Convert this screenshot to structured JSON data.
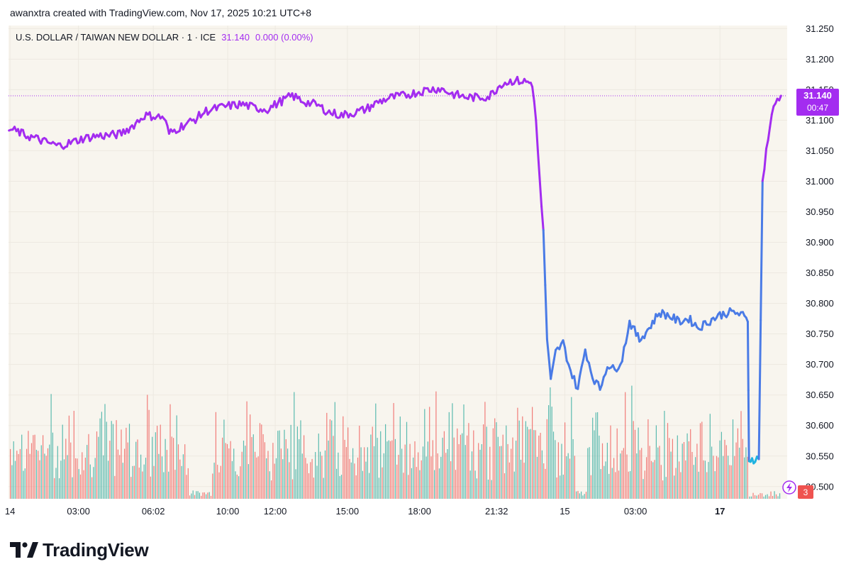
{
  "credit": "awanxtra created with TradingView.com, Nov 17, 2025 10:21 UTC+8",
  "brand": "TradingView",
  "colors": {
    "plot_bg": "#f8f5ee",
    "price_purple": "#a32cf0",
    "price_blue": "#4a7be6",
    "price_cyan": "#1fb3e0",
    "vol_up": "#26a69a",
    "vol_down": "#ef5350",
    "grid": "#ede9e1",
    "axis_text": "#131722"
  },
  "chart_data": {
    "type": "line",
    "title": "U.S. DOLLAR / TAIWAN NEW DOLLAR · 1 · ICE",
    "legend_value": "31.140",
    "legend_change": "0.000 (0.00%)",
    "last_price_label": "31.140",
    "countdown_label": "00:47",
    "event_badge": "3",
    "ylim": [
      30.48,
      31.255
    ],
    "y_ticks": [
      "31.250",
      "31.200",
      "31.150",
      "31.100",
      "31.050",
      "31.000",
      "30.950",
      "30.900",
      "30.850",
      "30.800",
      "30.750",
      "30.700",
      "30.650",
      "30.600",
      "30.550",
      "30.500"
    ],
    "x_ticks": [
      {
        "label": "14",
        "bold": false,
        "t": 0.04
      },
      {
        "label": "03:00",
        "bold": false,
        "t": 2.82
      },
      {
        "label": "06:02",
        "bold": false,
        "t": 5.86
      },
      {
        "label": "10:00",
        "bold": false,
        "t": 8.88
      },
      {
        "label": "12:00",
        "bold": false,
        "t": 10.81
      },
      {
        "label": "15:00",
        "bold": false,
        "t": 13.74
      },
      {
        "label": "18:00",
        "bold": false,
        "t": 16.67
      },
      {
        "label": "21:32",
        "bold": false,
        "t": 19.8
      },
      {
        "label": "15",
        "bold": false,
        "t": 22.57
      },
      {
        "label": "03:00",
        "bold": false,
        "t": 25.44
      },
      {
        "label": "17",
        "bold": true,
        "t": 28.87
      }
    ],
    "x_domain": [
      -0.02,
      31.6
    ],
    "series": [
      {
        "points": [
          [
            0.0,
            31.085
          ],
          [
            0.3,
            31.082
          ],
          [
            0.7,
            31.075
          ],
          [
            1.1,
            31.07
          ],
          [
            1.5,
            31.064
          ],
          [
            2.0,
            31.058
          ],
          [
            2.5,
            31.063
          ],
          [
            3.0,
            31.07
          ],
          [
            3.5,
            31.074
          ],
          [
            4.0,
            31.075
          ],
          [
            4.5,
            31.077
          ],
          [
            5.0,
            31.09
          ],
          [
            5.5,
            31.108
          ],
          [
            6.0,
            31.106
          ],
          [
            6.3,
            31.104
          ],
          [
            6.5,
            31.078
          ],
          [
            7.0,
            31.09
          ],
          [
            7.5,
            31.1
          ],
          [
            8.0,
            31.115
          ],
          [
            8.5,
            31.12
          ],
          [
            9.0,
            31.124
          ],
          [
            9.5,
            31.126
          ],
          [
            10.0,
            31.12
          ],
          [
            10.5,
            31.118
          ],
          [
            11.0,
            31.13
          ],
          [
            11.5,
            31.14
          ],
          [
            12.0,
            31.13
          ],
          [
            12.5,
            31.125
          ],
          [
            13.0,
            31.113
          ],
          [
            13.5,
            31.108
          ],
          [
            14.0,
            31.112
          ],
          [
            14.5,
            31.118
          ],
          [
            15.0,
            31.13
          ],
          [
            15.5,
            31.137
          ],
          [
            16.0,
            31.14
          ],
          [
            16.5,
            31.145
          ],
          [
            17.0,
            31.15
          ],
          [
            17.5,
            31.152
          ],
          [
            18.0,
            31.143
          ],
          [
            18.5,
            31.138
          ],
          [
            19.0,
            31.137
          ],
          [
            19.5,
            31.139
          ],
          [
            20.0,
            31.16
          ],
          [
            20.5,
            31.165
          ],
          [
            21.0,
            31.163
          ],
          [
            21.25,
            31.16
          ],
          [
            21.4,
            31.1
          ],
          [
            21.55,
            31.0
          ],
          [
            21.7,
            30.92
          ],
          [
            21.85,
            30.74
          ],
          [
            22.0,
            30.672
          ],
          [
            22.2,
            30.72
          ],
          [
            22.5,
            30.735
          ],
          [
            22.8,
            30.69
          ],
          [
            23.1,
            30.66
          ],
          [
            23.4,
            30.725
          ],
          [
            23.7,
            30.68
          ],
          [
            24.0,
            30.66
          ],
          [
            24.3,
            30.7
          ],
          [
            24.6,
            30.69
          ],
          [
            24.9,
            30.71
          ],
          [
            25.2,
            30.77
          ],
          [
            25.6,
            30.74
          ],
          [
            26.0,
            30.76
          ],
          [
            26.4,
            30.785
          ],
          [
            26.8,
            30.78
          ],
          [
            27.2,
            30.77
          ],
          [
            27.6,
            30.775
          ],
          [
            28.0,
            30.76
          ],
          [
            28.4,
            30.77
          ],
          [
            28.8,
            30.78
          ],
          [
            29.2,
            30.785
          ],
          [
            29.5,
            30.785
          ],
          [
            29.8,
            30.78
          ],
          [
            30.0,
            30.77
          ],
          [
            30.05,
            30.545
          ],
          [
            30.3,
            30.545
          ],
          [
            30.45,
            30.545
          ],
          [
            30.6,
            31.0
          ],
          [
            30.75,
            31.05
          ],
          [
            30.9,
            31.09
          ],
          [
            31.05,
            31.12
          ],
          [
            31.2,
            31.135
          ],
          [
            31.35,
            31.14
          ]
        ]
      }
    ]
  }
}
